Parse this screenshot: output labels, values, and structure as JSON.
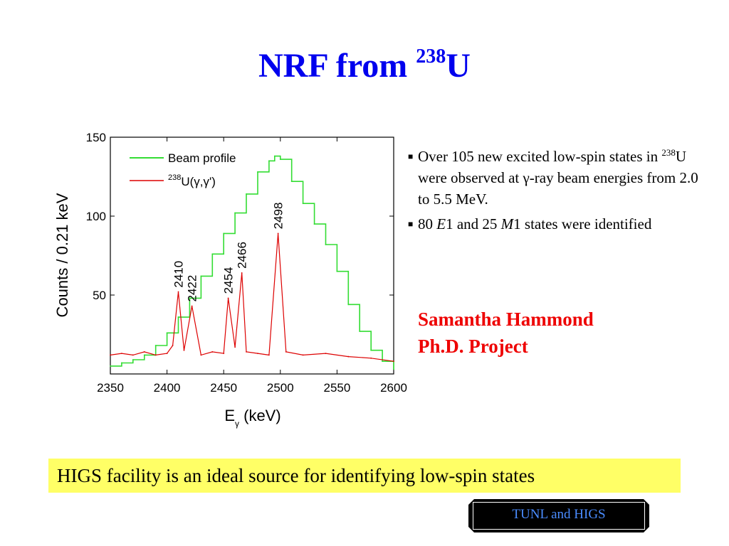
{
  "slide": {
    "title_prefix": "NRF from ",
    "title_superscript": "238",
    "title_suffix": "U",
    "bullets": [
      {
        "mark": "■",
        "pre": "Over 105  new excited low-spin states in ",
        "sup": "238",
        "post": "U were observed at γ-ray beam energies from 2.0  to 5.5 MeV."
      },
      {
        "mark": "■",
        "pre": "80 ",
        "em1": "E",
        "mid": "1 and 25 ",
        "em2": "M",
        "post": "1 states were identified"
      }
    ],
    "author_line1": "Samantha Hammond",
    "author_line2": "Ph.D. Project",
    "banner": "HIGS facility is an ideal source for identifying low-spin states",
    "badge": "TUNL and HIGS"
  },
  "colors": {
    "title": "#0000ee",
    "author": "#ee0000",
    "banner_bg": "#ffff66",
    "beam": "#33dd33",
    "nrf": "#dd0000",
    "badge_text": "#4a8cff"
  },
  "chart_data": {
    "type": "line",
    "xlabel": "E",
    "xlabel_sub": "γ",
    "xlabel_unit": " (keV)",
    "ylabel": "Counts / 0.21 keV",
    "xlim": [
      2350,
      2600
    ],
    "ylim": [
      0,
      150
    ],
    "x_ticks": [
      2350,
      2400,
      2450,
      2500,
      2550,
      2600
    ],
    "y_ticks": [
      50,
      100,
      150
    ],
    "legend": {
      "placement": "top-left",
      "items": [
        {
          "label": "Beam profile",
          "label_sup": "",
          "color": "#33dd33"
        },
        {
          "label": "U(γ,γ')",
          "label_sup": "238",
          "color": "#dd0000"
        }
      ]
    },
    "series": [
      {
        "name": "Beam profile",
        "color": "#33dd33",
        "x": [
          2350,
          2360,
          2370,
          2380,
          2390,
          2400,
          2410,
          2420,
          2430,
          2440,
          2450,
          2460,
          2470,
          2480,
          2490,
          2495,
          2500,
          2510,
          2520,
          2530,
          2540,
          2550,
          2560,
          2570,
          2580,
          2590,
          2600
        ],
        "y": [
          5,
          7,
          9,
          12,
          18,
          26,
          36,
          48,
          62,
          76,
          89,
          102,
          114,
          128,
          135,
          138,
          136,
          122,
          108,
          95,
          82,
          65,
          44,
          27,
          15,
          8,
          3
        ]
      },
      {
        "name": "238U(γ,γ')",
        "color": "#dd0000",
        "x": [
          2350,
          2360,
          2370,
          2380,
          2390,
          2400,
          2405,
          2410,
          2415,
          2422,
          2430,
          2440,
          2450,
          2454,
          2460,
          2466,
          2470,
          2480,
          2490,
          2498,
          2505,
          2520,
          2540,
          2560,
          2580,
          2600
        ],
        "y": [
          12,
          13,
          12,
          14,
          12,
          13,
          18,
          52,
          15,
          43,
          12,
          14,
          13,
          48,
          17,
          64,
          14,
          13,
          12,
          89,
          14,
          12,
          13,
          11,
          10,
          8
        ]
      }
    ],
    "peak_labels": [
      {
        "x": 2410,
        "y": 52,
        "label": "2410"
      },
      {
        "x": 2422,
        "y": 43,
        "label": "2422"
      },
      {
        "x": 2454,
        "y": 48,
        "label": "2454"
      },
      {
        "x": 2466,
        "y": 64,
        "label": "2466"
      },
      {
        "x": 2498,
        "y": 89,
        "label": "2498"
      }
    ]
  }
}
